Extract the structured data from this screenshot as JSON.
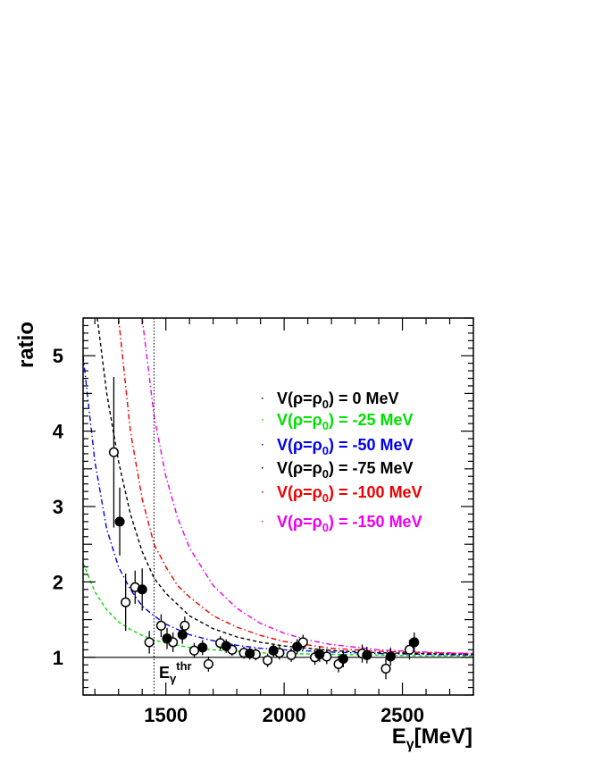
{
  "chart_data": {
    "type": "scatter",
    "ylabel": "ratio",
    "xlabel": {
      "base": "E",
      "sub": "γ",
      "rest": "[MeV]"
    },
    "xlim": [
      1150,
      2800
    ],
    "ylim": [
      0.5,
      5.5
    ],
    "xticks": [
      1500,
      2000,
      2500
    ],
    "yticks": [
      1,
      2,
      3,
      4,
      5
    ],
    "reference_line": 1.0,
    "threshold": {
      "x": 1450,
      "label_base": "E",
      "label_sub": "γ",
      "label_sup": "thr"
    },
    "legend": {
      "placement": "top-right",
      "entries": [
        {
          "prefix": "V(ρ=ρ",
          "sub": "0",
          "suffix": ") = 0 MeV",
          "color": "#000000"
        },
        {
          "prefix": "V(ρ=ρ",
          "sub": "0",
          "suffix": ") = -25 MeV",
          "color": "#00e000"
        },
        {
          "prefix": "V(ρ=ρ",
          "sub": "0",
          "suffix": ") = -50 MeV",
          "color": "#0000ee"
        },
        {
          "prefix": "V(ρ=ρ",
          "sub": "0",
          "suffix": ") = -75 MeV",
          "color": "#000000"
        },
        {
          "prefix": "V(ρ=ρ",
          "sub": "0",
          "suffix": ") = -100 MeV",
          "color": "#ee0000"
        },
        {
          "prefix": "V(ρ=ρ",
          "sub": "0",
          "suffix": ") = -150 MeV",
          "color": "#ee00ee"
        }
      ]
    },
    "curves": [
      {
        "color": "#00e000",
        "dash": "dash",
        "x": [
          1150,
          1200,
          1250,
          1300,
          1350,
          1400,
          1450,
          1500,
          1600,
          1700,
          1800,
          1900,
          2000,
          2200,
          2400,
          2600,
          2800
        ],
        "y": [
          2.25,
          1.87,
          1.63,
          1.47,
          1.37,
          1.29,
          1.23,
          1.19,
          1.13,
          1.1,
          1.08,
          1.06,
          1.05,
          1.04,
          1.03,
          1.02,
          1.02
        ]
      },
      {
        "color": "#0000ee",
        "dash": "dashdot",
        "x": [
          1150,
          1200,
          1250,
          1300,
          1350,
          1400,
          1450,
          1500,
          1600,
          1700,
          1800,
          1900,
          2000,
          2200,
          2400,
          2600,
          2800
        ],
        "y": [
          5.0,
          3.6,
          2.7,
          2.2,
          1.9,
          1.68,
          1.55,
          1.44,
          1.3,
          1.22,
          1.16,
          1.12,
          1.1,
          1.07,
          1.05,
          1.04,
          1.03
        ]
      },
      {
        "color": "#000000",
        "dash": "dash",
        "x": [
          1210,
          1250,
          1300,
          1350,
          1400,
          1450,
          1500,
          1600,
          1700,
          1800,
          1900,
          2000,
          2200,
          2400,
          2600,
          2800
        ],
        "y": [
          5.5,
          4.5,
          3.6,
          2.9,
          2.4,
          2.05,
          1.85,
          1.55,
          1.38,
          1.27,
          1.2,
          1.15,
          1.09,
          1.06,
          1.05,
          1.04
        ]
      },
      {
        "color": "#ee0000",
        "dash": "dashdot",
        "x": [
          1300,
          1350,
          1400,
          1450,
          1500,
          1550,
          1600,
          1700,
          1800,
          1900,
          2000,
          2200,
          2400,
          2600,
          2800
        ],
        "y": [
          5.5,
          4.0,
          3.1,
          2.5,
          2.2,
          1.95,
          1.8,
          1.55,
          1.4,
          1.29,
          1.21,
          1.12,
          1.08,
          1.06,
          1.05
        ]
      },
      {
        "color": "#ee00ee",
        "dash": "dashdot",
        "x": [
          1400,
          1450,
          1500,
          1550,
          1600,
          1700,
          1800,
          1900,
          2000,
          2100,
          2200,
          2400,
          2600,
          2800
        ],
        "y": [
          5.5,
          4.2,
          3.4,
          2.85,
          2.45,
          1.95,
          1.65,
          1.45,
          1.32,
          1.23,
          1.17,
          1.1,
          1.07,
          1.05
        ]
      }
    ],
    "series": [
      {
        "marker": "open-circle",
        "points": [
          {
            "x": 1280,
            "y": 3.72,
            "err": 1.0
          },
          {
            "x": 1330,
            "y": 1.73,
            "err": 0.38
          },
          {
            "x": 1370,
            "y": 1.93,
            "err": 0.22
          },
          {
            "x": 1430,
            "y": 1.2,
            "err": 0.15
          },
          {
            "x": 1480,
            "y": 1.42,
            "err": 0.15
          },
          {
            "x": 1530,
            "y": 1.2,
            "err": 0.13
          },
          {
            "x": 1580,
            "y": 1.42,
            "err": 0.12
          },
          {
            "x": 1620,
            "y": 1.09,
            "err": 0.1
          },
          {
            "x": 1680,
            "y": 0.91,
            "err": 0.1
          },
          {
            "x": 1730,
            "y": 1.19,
            "err": 0.09
          },
          {
            "x": 1780,
            "y": 1.1,
            "err": 0.08
          },
          {
            "x": 1830,
            "y": 1.06,
            "err": 0.08
          },
          {
            "x": 1880,
            "y": 1.04,
            "err": 0.08
          },
          {
            "x": 1930,
            "y": 0.96,
            "err": 0.09
          },
          {
            "x": 1980,
            "y": 1.06,
            "err": 0.09
          },
          {
            "x": 2030,
            "y": 1.03,
            "err": 0.09
          },
          {
            "x": 2080,
            "y": 1.2,
            "err": 0.1
          },
          {
            "x": 2130,
            "y": 1.0,
            "err": 0.1
          },
          {
            "x": 2180,
            "y": 1.01,
            "err": 0.1
          },
          {
            "x": 2230,
            "y": 0.91,
            "err": 0.11
          },
          {
            "x": 2330,
            "y": 1.05,
            "err": 0.12
          },
          {
            "x": 2430,
            "y": 0.85,
            "err": 0.14
          },
          {
            "x": 2530,
            "y": 1.1,
            "err": 0.13
          }
        ]
      },
      {
        "marker": "filled-circle",
        "points": [
          {
            "x": 1305,
            "y": 2.8,
            "err": 0.45
          },
          {
            "x": 1400,
            "y": 1.9,
            "err": 0.28
          },
          {
            "x": 1505,
            "y": 1.25,
            "err": 0.14
          },
          {
            "x": 1570,
            "y": 1.3,
            "err": 0.12
          },
          {
            "x": 1655,
            "y": 1.13,
            "err": 0.1
          },
          {
            "x": 1755,
            "y": 1.15,
            "err": 0.09
          },
          {
            "x": 1855,
            "y": 1.05,
            "err": 0.08
          },
          {
            "x": 1955,
            "y": 1.09,
            "err": 0.08
          },
          {
            "x": 2055,
            "y": 1.14,
            "err": 0.1
          },
          {
            "x": 2150,
            "y": 1.04,
            "err": 0.1
          },
          {
            "x": 2250,
            "y": 0.98,
            "err": 0.11
          },
          {
            "x": 2350,
            "y": 1.03,
            "err": 0.11
          },
          {
            "x": 2450,
            "y": 1.01,
            "err": 0.12
          },
          {
            "x": 2550,
            "y": 1.2,
            "err": 0.13
          }
        ]
      }
    ]
  }
}
